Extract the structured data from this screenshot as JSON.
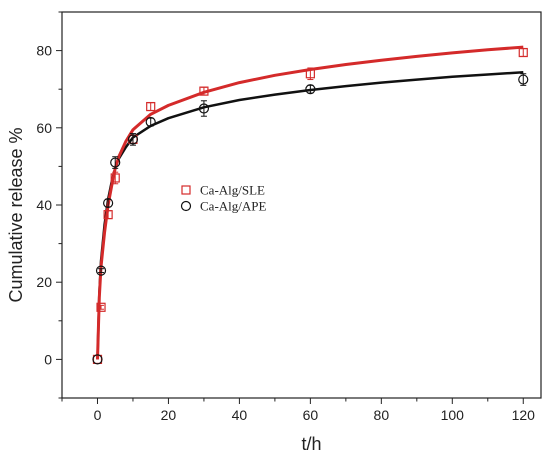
{
  "chart_data": {
    "type": "scatter",
    "title": "",
    "xlabel": "t/h",
    "ylabel": "Cumulative release %",
    "xlim": [
      -10,
      125
    ],
    "ylim": [
      -10,
      90
    ],
    "x_ticks": [
      0,
      20,
      40,
      60,
      80,
      100,
      120
    ],
    "y_ticks": [
      0,
      20,
      40,
      60,
      80
    ],
    "legend_position": "center-left",
    "grid": false,
    "series": [
      {
        "name": "Ca-Alg/SLE",
        "marker": "square",
        "color": "#d42a2a",
        "x": [
          0,
          1,
          3,
          5,
          10,
          15,
          30,
          60,
          120
        ],
        "y": [
          0,
          13.5,
          37.5,
          47,
          57,
          65.5,
          69.5,
          74,
          79.5
        ],
        "error": [
          0,
          0.5,
          1,
          1.5,
          1,
          1,
          1,
          1.5,
          1
        ],
        "fit_x": [
          0,
          0.5,
          1,
          2,
          3,
          4,
          5,
          6,
          8,
          10,
          15,
          20,
          30,
          40,
          50,
          60,
          70,
          80,
          90,
          100,
          110,
          120
        ],
        "fit_y": [
          0,
          16,
          24,
          33,
          40,
          45,
          49.5,
          52.5,
          56.5,
          59.5,
          63.5,
          65.8,
          69.2,
          71.7,
          73.6,
          75.1,
          76.4,
          77.5,
          78.5,
          79.4,
          80.2,
          80.9
        ]
      },
      {
        "name": "Ca-Alg/APE",
        "marker": "circle",
        "color": "#111111",
        "x": [
          0,
          1,
          3,
          5,
          10,
          15,
          30,
          60,
          120
        ],
        "y": [
          0,
          23,
          40.5,
          51,
          57,
          61.5,
          65,
          70,
          72.5
        ],
        "error": [
          0,
          0.5,
          1,
          1.5,
          1.5,
          1,
          2,
          1,
          1.5
        ],
        "fit_x": [
          0,
          0.5,
          1,
          2,
          3,
          4,
          5,
          6,
          8,
          10,
          15,
          20,
          30,
          40,
          50,
          60,
          70,
          80,
          90,
          100,
          110,
          120
        ],
        "fit_y": [
          0,
          17,
          25.5,
          35,
          41.5,
          46,
          49.5,
          52,
          55,
          57.5,
          60.5,
          62.5,
          65.3,
          67.2,
          68.6,
          69.8,
          70.8,
          71.7,
          72.5,
          73.2,
          73.8,
          74.4
        ]
      }
    ]
  }
}
